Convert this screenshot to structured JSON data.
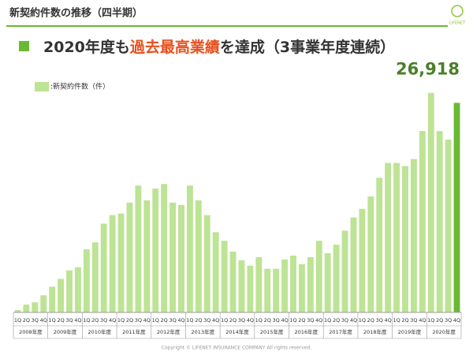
{
  "header": {
    "title": "新契約件数の推移（四半期）",
    "logo": "LIFENET"
  },
  "headline": [
    "2020年度も",
    "過去最高業績",
    "を達成（3事業年度連続）"
  ],
  "chart_data": {
    "type": "bar",
    "categories": [
      "1Q",
      "2Q",
      "3Q",
      "4Q",
      "1Q",
      "2Q",
      "3Q",
      "4Q",
      "1Q",
      "2Q",
      "3Q",
      "4Q",
      "1Q",
      "2Q",
      "3Q",
      "4Q",
      "1Q",
      "2Q",
      "3Q",
      "4Q",
      "1Q",
      "2Q",
      "3Q",
      "4Q",
      "1Q",
      "2Q",
      "3Q",
      "4Q",
      "1Q",
      "2Q",
      "3Q",
      "4Q",
      "1Q",
      "2Q",
      "3Q",
      "4Q",
      "1Q",
      "2Q",
      "3Q",
      "4Q",
      "1Q",
      "2Q",
      "3Q",
      "4Q",
      "1Q",
      "2Q",
      "3Q",
      "4Q",
      "1Q",
      "2Q",
      "3Q",
      "4Q"
    ],
    "years": [
      "2008年度",
      "2009年度",
      "2010年度",
      "2011年度",
      "2012年度",
      "2013年度",
      "2014年度",
      "2015年度",
      "2016年度",
      "2017年度",
      "2018年度",
      "2019年度",
      "2020年度"
    ],
    "series": [
      {
        "name": ":新契約件数（件）",
        "color": "#bde394",
        "highlight_color": "#6bb832",
        "values": [
          300,
          1000,
          1300,
          2200,
          3300,
          4300,
          5400,
          5800,
          8100,
          9000,
          11400,
          12500,
          12700,
          14100,
          16300,
          14400,
          15900,
          16500,
          14100,
          13800,
          16300,
          14400,
          12500,
          10300,
          9200,
          7800,
          6700,
          6000,
          7100,
          5600,
          5600,
          6800,
          7300,
          6200,
          7100,
          9200,
          7600,
          8700,
          10500,
          12200,
          13300,
          14900,
          17300,
          19200,
          19200,
          18800,
          19700,
          23300,
          28200,
          23300,
          22200,
          26918
        ],
        "value_labels": [
          null,
          null,
          null,
          null,
          null,
          null,
          null,
          null,
          null,
          null,
          null,
          null,
          null,
          null,
          null,
          null,
          null,
          null,
          null,
          null,
          null,
          null,
          null,
          null,
          null,
          null,
          null,
          null,
          null,
          null,
          null,
          null,
          null,
          null,
          null,
          null,
          null,
          null,
          null,
          null,
          null,
          null,
          null,
          null,
          null,
          null,
          null,
          null,
          null,
          null,
          null,
          "26,918"
        ]
      }
    ],
    "ylim": [
      0,
      30000
    ]
  },
  "footer": "Copyright © LIFENET INSURANCE COMPANY All rights reserved."
}
